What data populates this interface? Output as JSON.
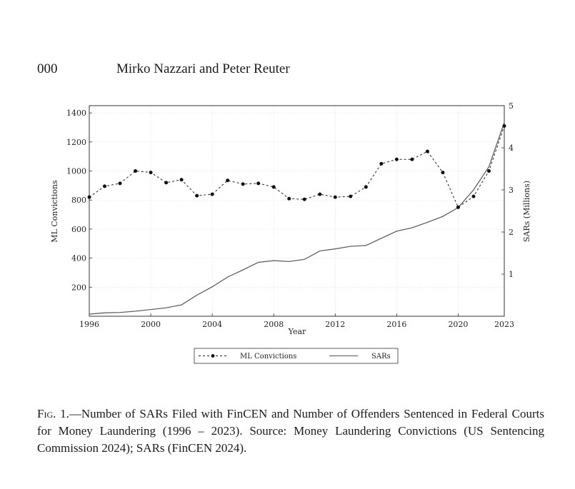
{
  "header": {
    "page_number": "000",
    "running_head": "Mirko Nazzari and Peter Reuter"
  },
  "chart_data": {
    "type": "line",
    "title": "",
    "xlabel": "Year",
    "ylabel_left": "ML Convictions",
    "ylabel_right": "SARs (Millions)",
    "xlim": [
      1996,
      2023
    ],
    "ylim_left": [
      0,
      1450
    ],
    "ylim_right": [
      0,
      5
    ],
    "x_ticks": [
      "1996",
      "2000",
      "2004",
      "2008",
      "2012",
      "2016",
      "2020",
      "2023"
    ],
    "y_left_ticks": [
      "200",
      "400",
      "600",
      "800",
      "1000",
      "1200",
      "1400"
    ],
    "y_right_ticks": [
      "1",
      "2",
      "3",
      "4",
      "5"
    ],
    "grid": true,
    "legend": [
      "ML Convictions",
      "SARs"
    ],
    "series": [
      {
        "name": "ML Convictions",
        "axis": "left",
        "style": "dashed-with-markers",
        "x": [
          1996,
          1997,
          1998,
          1999,
          2000,
          2001,
          2002,
          2003,
          2004,
          2005,
          2006,
          2007,
          2008,
          2009,
          2010,
          2011,
          2012,
          2013,
          2014,
          2015,
          2016,
          2017,
          2018,
          2019,
          2020,
          2021,
          2022,
          2023
        ],
        "values": [
          820,
          895,
          915,
          1000,
          990,
          920,
          940,
          830,
          840,
          935,
          910,
          915,
          890,
          810,
          805,
          840,
          820,
          825,
          890,
          1050,
          1080,
          1080,
          1135,
          990,
          750,
          825,
          1000,
          1310
        ]
      },
      {
        "name": "SARs",
        "axis": "right",
        "style": "solid",
        "x": [
          1996,
          1997,
          1998,
          1999,
          2000,
          2001,
          2002,
          2003,
          2004,
          2005,
          2006,
          2007,
          2008,
          2009,
          2010,
          2011,
          2012,
          2013,
          2014,
          2015,
          2016,
          2017,
          2018,
          2019,
          2020,
          2021,
          2022,
          2023
        ],
        "values": [
          0.05,
          0.08,
          0.09,
          0.12,
          0.16,
          0.2,
          0.27,
          0.5,
          0.7,
          0.93,
          1.1,
          1.28,
          1.32,
          1.3,
          1.35,
          1.55,
          1.6,
          1.66,
          1.68,
          1.85,
          2.02,
          2.1,
          2.23,
          2.37,
          2.58,
          3.0,
          3.55,
          4.6
        ]
      }
    ]
  },
  "caption": {
    "fig_label": "Fig. 1.",
    "text": "—Number of SARs Filed with FinCEN and Number of Offenders Sentenced in Federal Courts for Money Laundering (1996 – 2023). Source: Money Laundering Convictions (US Sentencing Commission 2024); SARs (FinCEN 2024)."
  }
}
